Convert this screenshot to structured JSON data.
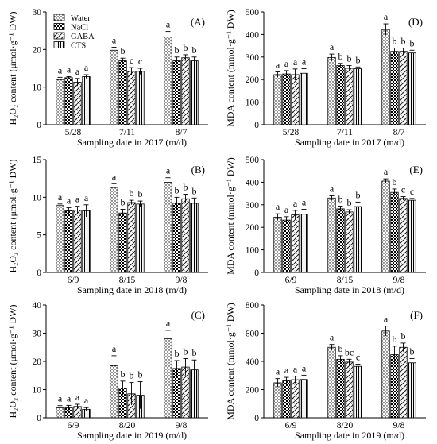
{
  "legend": {
    "placement": "top-left of panel A",
    "items": [
      {
        "name": "Water",
        "pattern": "dots"
      },
      {
        "name": "NaCl",
        "pattern": "checker"
      },
      {
        "name": "GABA",
        "pattern": "weave"
      },
      {
        "name": "CTS",
        "pattern": "vertical-lines"
      }
    ]
  },
  "chart_data": [
    {
      "type": "bar",
      "panel": "(A)",
      "xlabel": "Sampling date in 2017 (m/d)",
      "ylabel": "H₂O₂ content (μmol·g⁻¹ DW)",
      "ylim": [
        0,
        30
      ],
      "yticks": [
        0,
        10,
        20,
        30
      ],
      "categories": [
        "5/28",
        "7/11",
        "8/7"
      ],
      "series": [
        {
          "name": "Water",
          "values": [
            12.0,
            19.8,
            23.3
          ],
          "errors": [
            0.6,
            0.8,
            1.5
          ],
          "letters": [
            "a",
            "a",
            "a"
          ]
        },
        {
          "name": "NaCl",
          "values": [
            12.5,
            17.0,
            17.0
          ],
          "errors": [
            0.3,
            0.7,
            1.0
          ],
          "letters": [
            "a",
            "b",
            "b"
          ]
        },
        {
          "name": "GABA",
          "values": [
            11.3,
            14.2,
            17.8
          ],
          "errors": [
            1.0,
            1.0,
            0.8
          ],
          "letters": [
            "a",
            "c",
            "b"
          ]
        },
        {
          "name": "CTS",
          "values": [
            12.8,
            14.2,
            17.0
          ],
          "errors": [
            0.5,
            0.8,
            1.0
          ],
          "letters": [
            "a",
            "c",
            "b"
          ]
        }
      ]
    },
    {
      "type": "bar",
      "panel": "(D)",
      "xlabel": "Sampling date in 2017 (m/d)",
      "ylabel": "MDA content (mmol·g⁻¹ DW)",
      "ylim": [
        0,
        500
      ],
      "yticks": [
        0,
        100,
        200,
        300,
        400,
        500
      ],
      "categories": [
        "5/28",
        "7/11",
        "8/7"
      ],
      "series": [
        {
          "name": "Water",
          "values": [
            222,
            298,
            422
          ],
          "errors": [
            12,
            15,
            25
          ],
          "letters": [
            "a",
            "a",
            "a"
          ]
        },
        {
          "name": "NaCl",
          "values": [
            225,
            262,
            325
          ],
          "errors": [
            15,
            10,
            15
          ],
          "letters": [
            "a",
            "b",
            "b"
          ]
        },
        {
          "name": "GABA",
          "values": [
            222,
            250,
            325
          ],
          "errors": [
            25,
            12,
            15
          ],
          "letters": [
            "a",
            "b",
            "b"
          ]
        },
        {
          "name": "CTS",
          "values": [
            228,
            248,
            318
          ],
          "errors": [
            20,
            8,
            12
          ],
          "letters": [
            "a",
            "b",
            "b"
          ]
        }
      ]
    },
    {
      "type": "bar",
      "panel": "(B)",
      "xlabel": "Sampling date in 2018 (m/d)",
      "ylabel": "H₂O₂ content (μmol·g⁻¹ DW)",
      "ylim": [
        0,
        15
      ],
      "yticks": [
        0,
        5,
        10,
        15
      ],
      "categories": [
        "6/9",
        "8/15",
        "9/8"
      ],
      "series": [
        {
          "name": "Water",
          "values": [
            8.9,
            11.3,
            12.0
          ],
          "errors": [
            0.2,
            0.5,
            0.6
          ],
          "letters": [
            "a",
            "a",
            "a"
          ]
        },
        {
          "name": "NaCl",
          "values": [
            8.2,
            7.9,
            9.2
          ],
          "errors": [
            0.4,
            0.5,
            0.8
          ],
          "letters": [
            "a",
            "b",
            "b"
          ]
        },
        {
          "name": "GABA",
          "values": [
            8.3,
            9.3,
            9.8
          ],
          "errors": [
            0.5,
            0.3,
            0.6
          ],
          "letters": [
            "a",
            "b",
            "b"
          ]
        },
        {
          "name": "CTS",
          "values": [
            8.2,
            9.1,
            9.2
          ],
          "errors": [
            0.8,
            0.4,
            0.7
          ],
          "letters": [
            "a",
            "b",
            "b"
          ]
        }
      ]
    },
    {
      "type": "bar",
      "panel": "(E)",
      "xlabel": "Sampling date in 2018 (m/d)",
      "ylabel": "MDA content (mmol·g⁻¹ DW)",
      "ylim": [
        0,
        500
      ],
      "yticks": [
        0,
        100,
        200,
        300,
        400,
        500
      ],
      "categories": [
        "6/9",
        "8/15",
        "9/8"
      ],
      "series": [
        {
          "name": "Water",
          "values": [
            245,
            330,
            405
          ],
          "errors": [
            15,
            10,
            10
          ],
          "letters": [
            "a",
            "a",
            "a"
          ]
        },
        {
          "name": "NaCl",
          "values": [
            232,
            282,
            355
          ],
          "errors": [
            15,
            12,
            15
          ],
          "letters": [
            "a",
            "b",
            "b"
          ]
        },
        {
          "name": "GABA",
          "values": [
            255,
            268,
            328
          ],
          "errors": [
            20,
            10,
            8
          ],
          "letters": [
            "a",
            "b",
            "c"
          ]
        },
        {
          "name": "CTS",
          "values": [
            258,
            292,
            320
          ],
          "errors": [
            22,
            20,
            8
          ],
          "letters": [
            "a",
            "b",
            "c"
          ]
        }
      ]
    },
    {
      "type": "bar",
      "panel": "(C)",
      "xlabel": "Sampling date in 2019 (m/d)",
      "ylabel": "H₂O₂ content (μmol·g⁻¹ DW)",
      "ylim": [
        0,
        40
      ],
      "yticks": [
        0,
        10,
        20,
        30,
        40
      ],
      "categories": [
        "6/9",
        "8/20",
        "9/8"
      ],
      "series": [
        {
          "name": "Water",
          "values": [
            3.5,
            18.5,
            28.0
          ],
          "errors": [
            0.8,
            3.5,
            3.0
          ],
          "letters": [
            "a",
            "a",
            "a"
          ]
        },
        {
          "name": "NaCl",
          "values": [
            3.5,
            10.5,
            17.5
          ],
          "errors": [
            0.9,
            2.5,
            2.8
          ],
          "letters": [
            "a",
            "b",
            "b"
          ]
        },
        {
          "name": "GABA",
          "values": [
            4.0,
            8.5,
            18.0
          ],
          "errors": [
            0.8,
            4.0,
            3.0
          ],
          "letters": [
            "a",
            "b",
            "b"
          ]
        },
        {
          "name": "CTS",
          "values": [
            3.0,
            8.0,
            17.0
          ],
          "errors": [
            0.6,
            4.8,
            3.5
          ],
          "letters": [
            "a",
            "b",
            "b"
          ]
        }
      ]
    },
    {
      "type": "bar",
      "panel": "(F)",
      "xlabel": "Sampling date in 2019 (m/d)",
      "ylabel": "MDA content (mmol·g⁻¹ DW)",
      "ylim": [
        0,
        800
      ],
      "yticks": [
        0,
        200,
        400,
        600,
        800
      ],
      "categories": [
        "6/9",
        "8/20",
        "9/8"
      ],
      "series": [
        {
          "name": "Water",
          "values": [
            248,
            500,
            615
          ],
          "errors": [
            30,
            20,
            35
          ],
          "letters": [
            "a",
            "a",
            "a"
          ]
        },
        {
          "name": "NaCl",
          "values": [
            262,
            415,
            448
          ],
          "errors": [
            25,
            25,
            60
          ],
          "letters": [
            "a",
            "b",
            "b"
          ]
        },
        {
          "name": "GABA",
          "values": [
            270,
            395,
            500
          ],
          "errors": [
            25,
            20,
            30
          ],
          "letters": [
            "a",
            "bc",
            "b"
          ]
        },
        {
          "name": "CTS",
          "values": [
            272,
            365,
            390
          ],
          "errors": [
            30,
            15,
            30
          ],
          "letters": [
            "a",
            "c",
            "b"
          ]
        }
      ]
    }
  ]
}
